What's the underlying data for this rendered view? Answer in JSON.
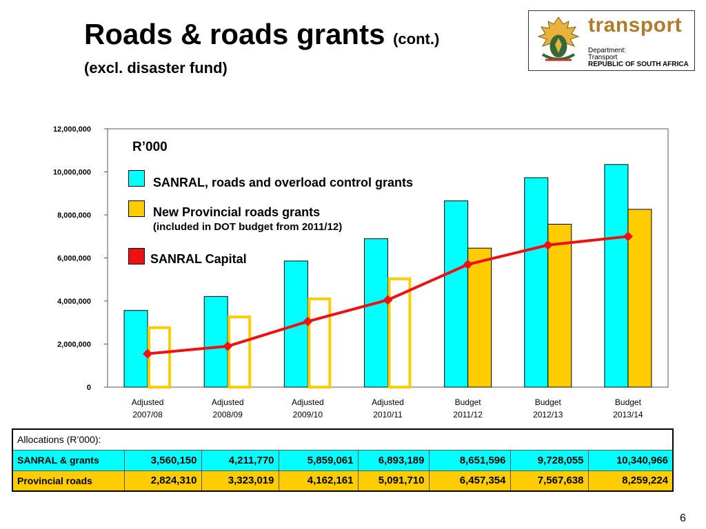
{
  "slide": {
    "title": "Roads & roads grants",
    "title_suffix": "(cont.)",
    "subtitle": "(excl. disaster fund)",
    "page_number": "6"
  },
  "logo": {
    "word": "transport",
    "line1": "Department:",
    "line2": "Transport",
    "line3": "REPUBLIC OF SOUTH AFRICA"
  },
  "legend": {
    "unit": "R’000",
    "sanral_label": "SANRAL, roads and overload control grants",
    "provincial_label": "New Provincial roads grants",
    "provincial_note": "(included in DOT budget from 2011/12)",
    "capital_label": "SANRAL Capital"
  },
  "colors": {
    "sanral": "#00ffff",
    "provincial": "#ffcc00",
    "capital": "#ee1111"
  },
  "chart_data": {
    "type": "bar",
    "categories": [
      [
        "Adjusted",
        "2007/08"
      ],
      [
        "Adjusted",
        "2008/09"
      ],
      [
        "Adjusted",
        "2009/10"
      ],
      [
        "Adjusted",
        "2010/11"
      ],
      [
        "Budget",
        "2011/12"
      ],
      [
        "Budget",
        "2012/13"
      ],
      [
        "Budget",
        "2013/14"
      ]
    ],
    "ylim": [
      0,
      12000000
    ],
    "yticks": [
      0,
      2000000,
      4000000,
      6000000,
      8000000,
      10000000,
      12000000
    ],
    "ytick_labels": [
      "0",
      "2,000,000",
      "4,000,000",
      "6,000,000",
      "8,000,000",
      "10,000,000",
      "12,000,000"
    ],
    "series": [
      {
        "name": "SANRAL, roads and overload control grants",
        "kind": "bar",
        "values": [
          3560150,
          4211770,
          5859061,
          6893189,
          8651596,
          9728055,
          10340966
        ]
      },
      {
        "name": "New Provincial roads grants",
        "kind": "bar",
        "outline_only_first": 4,
        "values": [
          2824310,
          3323019,
          4162161,
          5091710,
          6457354,
          7567638,
          8259224
        ]
      },
      {
        "name": "SANRAL Capital",
        "kind": "line",
        "values": [
          1550000,
          1900000,
          3050000,
          4050000,
          5700000,
          6600000,
          7000000
        ]
      }
    ],
    "grid": false
  },
  "table": {
    "header": "Allocations (R’000):",
    "rows": [
      {
        "label": "SANRAL & grants",
        "values": [
          "3,560,150",
          "4,211,770",
          "5,859,061",
          "6,893,189",
          "8,651,596",
          "9,728,055",
          "10,340,966"
        ]
      },
      {
        "label": "Provincial roads",
        "values": [
          "2,824,310",
          "3,323,019",
          "4,162,161",
          "5,091,710",
          "6,457,354",
          "7,567,638",
          "8,259,224"
        ]
      }
    ]
  }
}
